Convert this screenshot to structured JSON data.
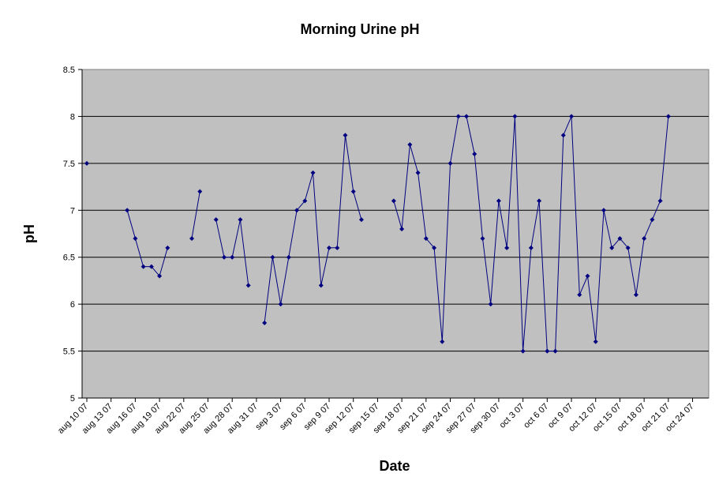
{
  "chart_data": {
    "type": "line",
    "title": "Morning Urine pH",
    "xlabel": "Date",
    "ylabel": "pH",
    "ylim": [
      5,
      8.5
    ],
    "yticks": [
      "5",
      "5.5",
      "6",
      "6.5",
      "7",
      "7.5",
      "8",
      "8.5"
    ],
    "xlim": [
      "2007-08-10",
      "2007-10-26"
    ],
    "xticks": [
      {
        "date": "2007-08-10",
        "label": "aug 10 07"
      },
      {
        "date": "2007-08-13",
        "label": "aug 13 07"
      },
      {
        "date": "2007-08-16",
        "label": "aug 16 07"
      },
      {
        "date": "2007-08-19",
        "label": "aug 19 07"
      },
      {
        "date": "2007-08-22",
        "label": "aug 22 07"
      },
      {
        "date": "2007-08-25",
        "label": "aug 25 07"
      },
      {
        "date": "2007-08-28",
        "label": "aug 28 07"
      },
      {
        "date": "2007-08-31",
        "label": "aug 31 07"
      },
      {
        "date": "2007-09-03",
        "label": "sep  3 07"
      },
      {
        "date": "2007-09-06",
        "label": "sep  6 07"
      },
      {
        "date": "2007-09-09",
        "label": "sep  9 07"
      },
      {
        "date": "2007-09-12",
        "label": "sep 12 07"
      },
      {
        "date": "2007-09-15",
        "label": "sep 15 07"
      },
      {
        "date": "2007-09-18",
        "label": "sep 18 07"
      },
      {
        "date": "2007-09-21",
        "label": "sep 21 07"
      },
      {
        "date": "2007-09-24",
        "label": "sep 24 07"
      },
      {
        "date": "2007-09-27",
        "label": "sep 27 07"
      },
      {
        "date": "2007-09-30",
        "label": "sep 30 07"
      },
      {
        "date": "2007-10-03",
        "label": "oct  3 07"
      },
      {
        "date": "2007-10-06",
        "label": "oct  6 07"
      },
      {
        "date": "2007-10-09",
        "label": "oct  9 07"
      },
      {
        "date": "2007-10-12",
        "label": "oct 12 07"
      },
      {
        "date": "2007-10-15",
        "label": "oct 15 07"
      },
      {
        "date": "2007-10-18",
        "label": "oct 18 07"
      },
      {
        "date": "2007-10-21",
        "label": "oct 21 07"
      },
      {
        "date": "2007-10-24",
        "label": "oct 24 07"
      }
    ],
    "grid": "horizontal",
    "legend": "none",
    "colors": {
      "line": "#000080",
      "plot_bg": "#c0c0c0",
      "grid": "#000000"
    },
    "series": [
      {
        "segments": [
          [
            {
              "x": "2007-08-10",
              "y": 7.5
            }
          ],
          [
            {
              "x": "2007-08-15",
              "y": 7.0
            },
            {
              "x": "2007-08-16",
              "y": 6.7
            },
            {
              "x": "2007-08-17",
              "y": 6.4
            },
            {
              "x": "2007-08-18",
              "y": 6.4
            },
            {
              "x": "2007-08-19",
              "y": 6.3
            },
            {
              "x": "2007-08-20",
              "y": 6.6
            }
          ],
          [
            {
              "x": "2007-08-23",
              "y": 6.7
            },
            {
              "x": "2007-08-24",
              "y": 7.2
            }
          ],
          [
            {
              "x": "2007-08-26",
              "y": 6.9
            },
            {
              "x": "2007-08-27",
              "y": 6.5
            },
            {
              "x": "2007-08-28",
              "y": 6.5
            },
            {
              "x": "2007-08-29",
              "y": 6.9
            },
            {
              "x": "2007-08-30",
              "y": 6.2
            }
          ],
          [
            {
              "x": "2007-09-01",
              "y": 5.8
            },
            {
              "x": "2007-09-02",
              "y": 6.5
            },
            {
              "x": "2007-09-03",
              "y": 6.0
            },
            {
              "x": "2007-09-04",
              "y": 6.5
            },
            {
              "x": "2007-09-05",
              "y": 7.0
            },
            {
              "x": "2007-09-06",
              "y": 7.1
            },
            {
              "x": "2007-09-07",
              "y": 7.4
            },
            {
              "x": "2007-09-08",
              "y": 6.2
            },
            {
              "x": "2007-09-09",
              "y": 6.6
            },
            {
              "x": "2007-09-10",
              "y": 6.6
            },
            {
              "x": "2007-09-11",
              "y": 7.8
            },
            {
              "x": "2007-09-12",
              "y": 7.2
            },
            {
              "x": "2007-09-13",
              "y": 6.9
            }
          ],
          [
            {
              "x": "2007-09-17",
              "y": 7.1
            },
            {
              "x": "2007-09-18",
              "y": 6.8
            },
            {
              "x": "2007-09-19",
              "y": 7.7
            },
            {
              "x": "2007-09-20",
              "y": 7.4
            },
            {
              "x": "2007-09-21",
              "y": 6.7
            },
            {
              "x": "2007-09-22",
              "y": 6.6
            },
            {
              "x": "2007-09-23",
              "y": 5.6
            },
            {
              "x": "2007-09-24",
              "y": 7.5
            },
            {
              "x": "2007-09-25",
              "y": 8.0
            },
            {
              "x": "2007-09-26",
              "y": 8.0
            },
            {
              "x": "2007-09-27",
              "y": 7.6
            },
            {
              "x": "2007-09-28",
              "y": 6.7
            },
            {
              "x": "2007-09-29",
              "y": 6.0
            },
            {
              "x": "2007-09-30",
              "y": 7.1
            },
            {
              "x": "2007-10-01",
              "y": 6.6
            },
            {
              "x": "2007-10-02",
              "y": 8.0
            },
            {
              "x": "2007-10-03",
              "y": 5.5
            },
            {
              "x": "2007-10-04",
              "y": 6.6
            },
            {
              "x": "2007-10-05",
              "y": 7.1
            },
            {
              "x": "2007-10-06",
              "y": 5.5
            },
            {
              "x": "2007-10-07",
              "y": 5.5
            },
            {
              "x": "2007-10-08",
              "y": 7.8
            },
            {
              "x": "2007-10-09",
              "y": 8.0
            },
            {
              "x": "2007-10-10",
              "y": 6.1
            },
            {
              "x": "2007-10-11",
              "y": 6.3
            },
            {
              "x": "2007-10-12",
              "y": 5.6
            },
            {
              "x": "2007-10-13",
              "y": 7.0
            },
            {
              "x": "2007-10-14",
              "y": 6.6
            },
            {
              "x": "2007-10-15",
              "y": 6.7
            },
            {
              "x": "2007-10-16",
              "y": 6.6
            },
            {
              "x": "2007-10-17",
              "y": 6.1
            },
            {
              "x": "2007-10-18",
              "y": 6.7
            },
            {
              "x": "2007-10-19",
              "y": 6.9
            },
            {
              "x": "2007-10-20",
              "y": 7.1
            },
            {
              "x": "2007-10-21",
              "y": 8.0
            }
          ]
        ]
      }
    ]
  }
}
